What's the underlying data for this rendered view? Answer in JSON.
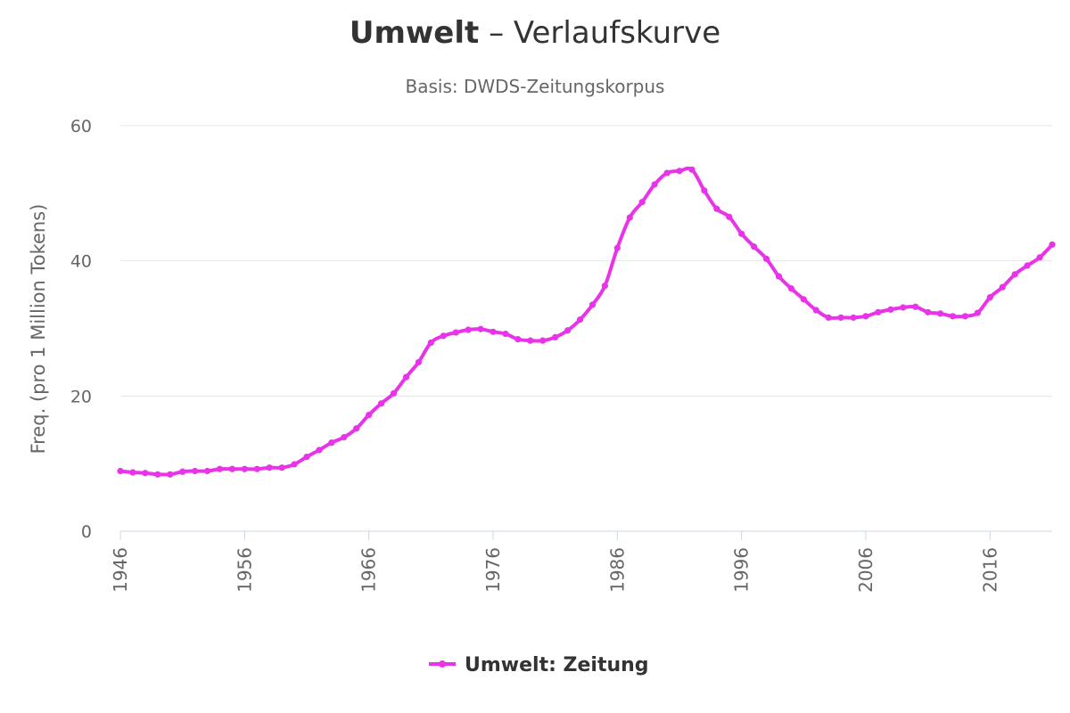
{
  "chart_data": {
    "type": "line",
    "title_term": "Umwelt",
    "title_sep": " – ",
    "title_rest": "Verlaufskurve",
    "subtitle": "Basis: DWDS-Zeitungskorpus",
    "ylabel": "Freq. (pro 1 Million Tokens)",
    "xlabel": "",
    "xlim": [
      1946,
      2021
    ],
    "ylim": [
      0,
      60
    ],
    "yticks": [
      0,
      20,
      40,
      60
    ],
    "xticks": [
      1946,
      1956,
      1966,
      1976,
      1986,
      1996,
      2006,
      2016
    ],
    "grid": true,
    "legend_position": "bottom-center",
    "series": [
      {
        "name": "Umwelt: Zeitung",
        "color": "#e933e9",
        "x": [
          1946,
          1947,
          1948,
          1949,
          1950,
          1951,
          1952,
          1953,
          1954,
          1955,
          1956,
          1957,
          1958,
          1959,
          1960,
          1961,
          1962,
          1963,
          1964,
          1965,
          1966,
          1967,
          1968,
          1969,
          1970,
          1971,
          1972,
          1973,
          1974,
          1975,
          1976,
          1977,
          1978,
          1979,
          1980,
          1981,
          1982,
          1983,
          1984,
          1985,
          1986,
          1987,
          1988,
          1989,
          1990,
          1991,
          1992,
          1993,
          1994,
          1995,
          1996,
          1997,
          1998,
          1999,
          2000,
          2001,
          2002,
          2003,
          2004,
          2005,
          2006,
          2007,
          2008,
          2009,
          2010,
          2011,
          2012,
          2013,
          2014,
          2015,
          2016,
          2017,
          2018,
          2019,
          2020,
          2021
        ],
        "y": [
          8.9,
          8.7,
          8.6,
          8.4,
          8.4,
          8.8,
          8.9,
          8.9,
          9.2,
          9.2,
          9.2,
          9.2,
          9.4,
          9.4,
          9.9,
          11.0,
          12.0,
          13.1,
          13.9,
          15.2,
          17.2,
          18.9,
          20.4,
          22.8,
          25.0,
          27.9,
          28.9,
          29.4,
          29.8,
          29.9,
          29.5,
          29.2,
          28.4,
          28.2,
          28.2,
          28.7,
          29.7,
          31.3,
          33.5,
          36.3,
          41.9,
          46.4,
          48.7,
          51.3,
          53.0,
          53.3,
          53.5,
          50.4,
          47.7,
          46.5,
          44.0,
          42.1,
          40.3,
          37.7,
          35.9,
          34.3,
          32.7,
          31.6,
          31.6,
          31.6,
          31.8,
          32.4,
          32.8,
          33.1,
          33.2,
          32.4,
          32.2,
          31.8,
          31.8,
          32.3,
          34.6,
          36.1,
          38.0,
          39.3,
          40.5,
          42.4
        ]
      }
    ]
  }
}
